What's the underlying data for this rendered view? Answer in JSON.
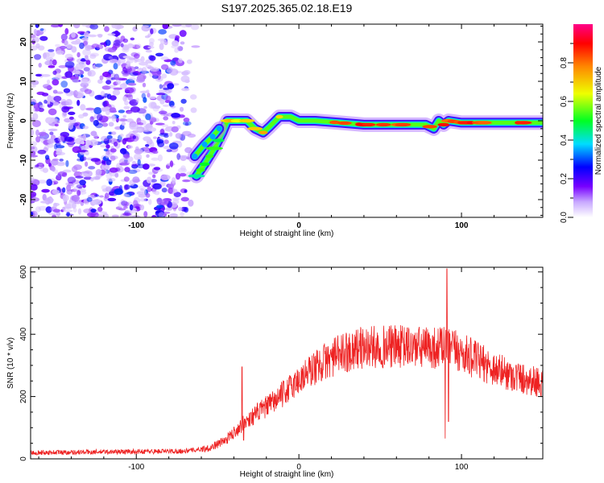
{
  "figure": {
    "title": "S197.2025.365.02.18.E19"
  },
  "chart_data": [
    {
      "type": "heatmap",
      "xlabel": "Height of straight line (km)",
      "ylabel": "Frequency (Hz)",
      "xlim": [
        -165,
        150
      ],
      "ylim": [
        -24.5,
        24.5
      ],
      "x_ticks": [
        -100,
        0,
        100
      ],
      "y_ticks": [
        -20,
        -10,
        0,
        10,
        20
      ],
      "grid": false,
      "colorbar": {
        "label": "Normalized spectral amplitude",
        "range": [
          0.0,
          1.0
        ],
        "ticks": [
          0.0,
          0.2,
          0.4,
          0.6,
          0.8
        ],
        "tick_labels": [
          "0.0",
          "0.2",
          "0.4",
          "0.6",
          "0.8"
        ],
        "colors": [
          "#ffffff",
          "#c8a8ff",
          "#7700ff",
          "#0000ff",
          "#00ddff",
          "#00ff22",
          "#eeff00",
          "#ff8800",
          "#ff0000",
          "#ff0088"
        ]
      },
      "noise_region": {
        "x_range": [
          -165,
          -63
        ],
        "amplitude_range": [
          0.05,
          0.3
        ]
      },
      "ridge": {
        "points": [
          {
            "x": -63,
            "f": -14
          },
          {
            "x": -58,
            "f": -11
          },
          {
            "x": -52,
            "f": -7
          },
          {
            "x": -47,
            "f": -3
          },
          {
            "x": -44,
            "f": 0
          },
          {
            "x": -38,
            "f": 0
          },
          {
            "x": -32,
            "f": 0
          },
          {
            "x": -27,
            "f": -2
          },
          {
            "x": -22,
            "f": -3
          },
          {
            "x": -18,
            "f": -1.5
          },
          {
            "x": -12,
            "f": 1
          },
          {
            "x": -5,
            "f": 1
          },
          {
            "x": 0,
            "f": 0
          },
          {
            "x": 10,
            "f": 0
          },
          {
            "x": 25,
            "f": -0.5
          },
          {
            "x": 40,
            "f": -1
          },
          {
            "x": 55,
            "f": -1
          },
          {
            "x": 70,
            "f": -1
          },
          {
            "x": 78,
            "f": -1
          },
          {
            "x": 83,
            "f": -2
          },
          {
            "x": 86,
            "f": 0
          },
          {
            "x": 89,
            "f": -1
          },
          {
            "x": 92,
            "f": 0
          },
          {
            "x": 100,
            "f": -0.5
          },
          {
            "x": 120,
            "f": -0.5
          },
          {
            "x": 150,
            "f": -0.5
          }
        ],
        "branch": [
          {
            "x": -64,
            "f": -9
          },
          {
            "x": -58,
            "f": -6
          },
          {
            "x": -53,
            "f": -4
          },
          {
            "x": -49,
            "f": -2
          }
        ]
      }
    },
    {
      "type": "line",
      "xlabel": "Height of straight line (km)",
      "ylabel": "SNR (10 * v/v)",
      "xlim": [
        -165,
        150
      ],
      "ylim": [
        0,
        615
      ],
      "x_ticks": [
        -100,
        0,
        100
      ],
      "y_ticks": [
        0,
        200,
        400,
        600
      ],
      "grid": false,
      "series": [
        {
          "color": "#ee2222",
          "envelope": [
            {
              "x": -165,
              "y": 20
            },
            {
              "x": -70,
              "y": 25
            },
            {
              "x": -55,
              "y": 35
            },
            {
              "x": -45,
              "y": 60
            },
            {
              "x": -35,
              "y": 110
            },
            {
              "x": -25,
              "y": 150
            },
            {
              "x": -15,
              "y": 185
            },
            {
              "x": -5,
              "y": 230
            },
            {
              "x": 5,
              "y": 275
            },
            {
              "x": 15,
              "y": 310
            },
            {
              "x": 25,
              "y": 335
            },
            {
              "x": 35,
              "y": 355
            },
            {
              "x": 50,
              "y": 360
            },
            {
              "x": 65,
              "y": 360
            },
            {
              "x": 80,
              "y": 355
            },
            {
              "x": 90,
              "y": 360
            },
            {
              "x": 100,
              "y": 340
            },
            {
              "x": 110,
              "y": 315
            },
            {
              "x": 120,
              "y": 290
            },
            {
              "x": 130,
              "y": 270
            },
            {
              "x": 140,
              "y": 255
            },
            {
              "x": 150,
              "y": 245
            }
          ],
          "spikes": [
            {
              "x": -35,
              "y": 295
            },
            {
              "x": -34,
              "y": 60
            },
            {
              "x": 91,
              "y": 610
            },
            {
              "x": 90,
              "y": 65
            },
            {
              "x": 92,
              "y": 120
            },
            {
              "x": 88,
              "y": 420
            }
          ]
        }
      ]
    }
  ]
}
